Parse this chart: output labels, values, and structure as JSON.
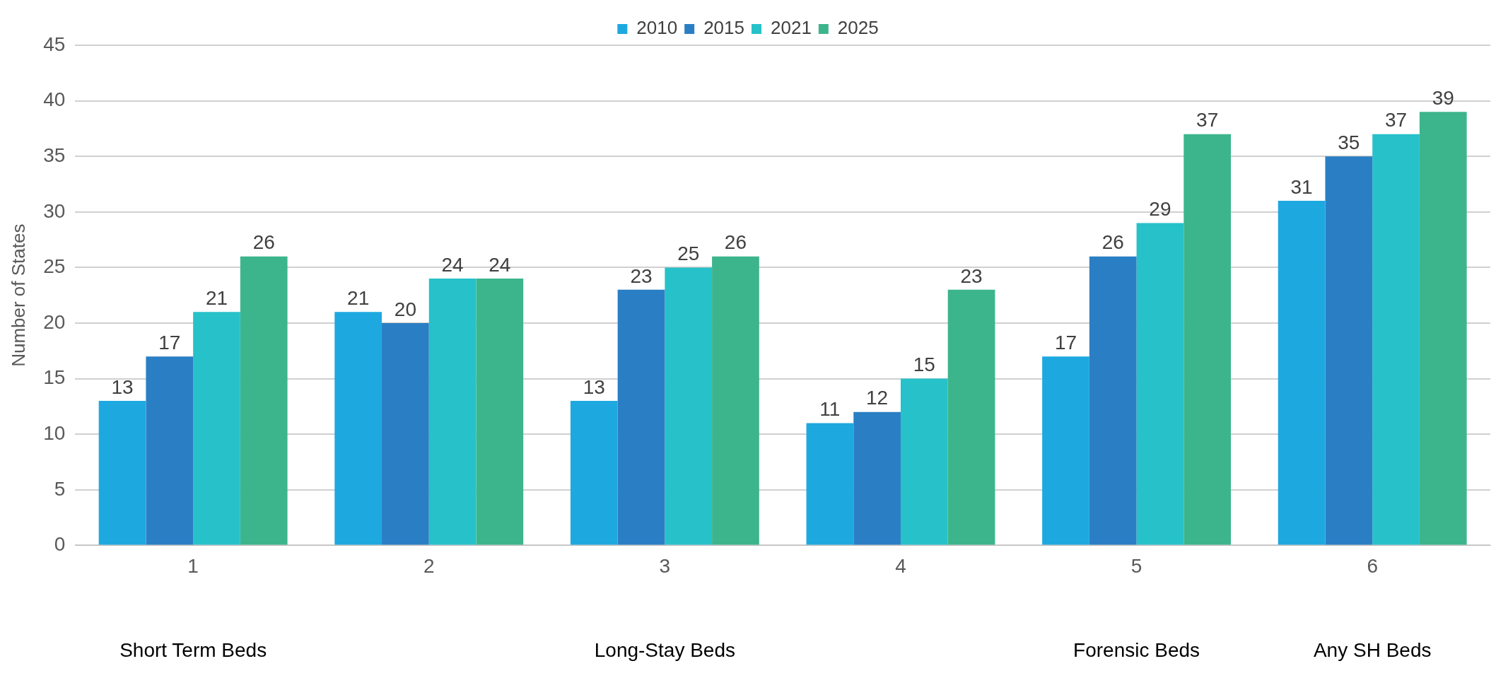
{
  "chart_data": {
    "type": "bar",
    "ylabel": "Number of States",
    "categories": [
      "1",
      "2",
      "3",
      "4",
      "5",
      "6"
    ],
    "series": [
      {
        "name": "2010",
        "color": "#1ea8e0",
        "values": [
          13,
          21,
          13,
          11,
          17,
          31
        ]
      },
      {
        "name": "2015",
        "color": "#2a7fc4",
        "values": [
          17,
          20,
          23,
          12,
          26,
          35
        ]
      },
      {
        "name": "2021",
        "color": "#27c1c9",
        "values": [
          21,
          24,
          25,
          15,
          29,
          37
        ]
      },
      {
        "name": "2025",
        "color": "#3db58c",
        "values": [
          26,
          24,
          26,
          23,
          37,
          39
        ]
      }
    ],
    "ylim": [
      0,
      45
    ],
    "yticks": [
      0,
      5,
      10,
      15,
      20,
      25,
      30,
      35,
      40,
      45
    ],
    "grid": "y",
    "legend": "top",
    "data_labels": true,
    "annotations": [
      "Short Term Beds",
      "Long-Stay Beds",
      "Forensic Beds",
      "Any SH Beds"
    ]
  }
}
